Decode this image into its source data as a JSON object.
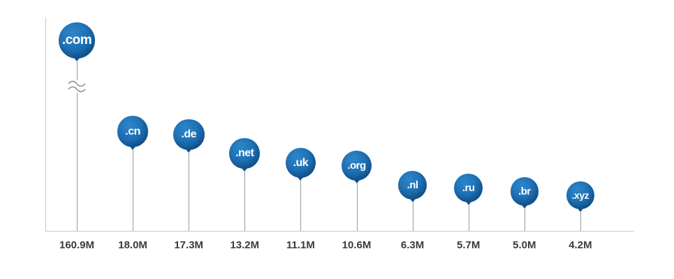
{
  "chart_data": {
    "type": "lollipop",
    "categories": [
      ".com",
      ".cn",
      ".de",
      ".net",
      ".uk",
      ".org",
      ".nl",
      ".ru",
      ".br",
      ".xyz"
    ],
    "values": [
      160.9,
      18.0,
      17.3,
      13.2,
      11.1,
      10.6,
      6.3,
      5.7,
      5.0,
      4.2
    ],
    "value_labels": [
      "160.9M",
      "18.0M",
      "17.3M",
      "13.2M",
      "11.1M",
      "10.6M",
      "6.3M",
      "5.7M",
      "5.0M",
      "4.2M"
    ],
    "unit": "M",
    "axis_break_category": ".com",
    "legend": "none",
    "grid": false,
    "colors": {
      "balloon": "#1b6cb0",
      "balloon_dark": "#0f5195",
      "balloon_light": "#2d86c9",
      "balloon_text": "#ffffff",
      "stem": "#9b9b9b",
      "axis": "#c9c9c9",
      "value_label": "#3b3b3b",
      "background": "#ffffff"
    }
  }
}
